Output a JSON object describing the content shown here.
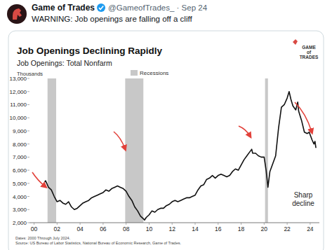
{
  "tweet": {
    "author": "Game of Trades",
    "meta": "@GameofTrades_ · Sep 24",
    "text": "WARNING: Job openings are falling off a cliff"
  },
  "chart_data": {
    "type": "line",
    "title": "Job Openings Declining Rapidly",
    "subtitle": "Job Openings: Total Nonfarm",
    "y_label": "Thousands",
    "legend_label": "Recessions",
    "logo": "GAME of TRADES",
    "annotation": "Sharp decline",
    "notes": [
      "Dates: 2000 Through July 2024.",
      "Source: US Bureau of Labor Statistics, National Bureau of Economic Research, Game of Trades."
    ],
    "color": "#111111",
    "recession_color": "#c8c8c8",
    "grid": false,
    "xlim": [
      1999.6,
      2024.8
    ],
    "ylim": [
      2000,
      13000
    ],
    "xticks": [
      {
        "value": 2000,
        "label": "00"
      },
      {
        "value": 2002,
        "label": "02"
      },
      {
        "value": 2004,
        "label": "04"
      },
      {
        "value": 2006,
        "label": "06"
      },
      {
        "value": 2008,
        "label": "08"
      },
      {
        "value": 2010,
        "label": "10"
      },
      {
        "value": 2012,
        "label": "12"
      },
      {
        "value": 2014,
        "label": "14"
      },
      {
        "value": 2016,
        "label": "16"
      },
      {
        "value": 2018,
        "label": "18"
      },
      {
        "value": 2020,
        "label": "20"
      },
      {
        "value": 2022,
        "label": "22"
      },
      {
        "value": 2024,
        "label": "24"
      }
    ],
    "yticks": [
      {
        "value": 2000,
        "label": "2,000"
      },
      {
        "value": 3000,
        "label": "3,000"
      },
      {
        "value": 4000,
        "label": "4,000"
      },
      {
        "value": 5000,
        "label": "5,000"
      },
      {
        "value": 6000,
        "label": "6,000"
      },
      {
        "value": 7000,
        "label": "7,000"
      },
      {
        "value": 8000,
        "label": "8,000"
      },
      {
        "value": 9000,
        "label": "9,000"
      },
      {
        "value": 10000,
        "label": "10,000"
      },
      {
        "value": 11000,
        "label": "11,000"
      },
      {
        "value": 12000,
        "label": "12,000"
      },
      {
        "value": 13000,
        "label": "13,000"
      }
    ],
    "recessions": [
      [
        2001.17,
        2001.92
      ],
      [
        2007.92,
        2009.5
      ],
      [
        2020.08,
        2020.33
      ]
    ],
    "x": [
      2000.92,
      2001.0,
      2001.25,
      2001.5,
      2001.75,
      2002.0,
      2002.25,
      2002.5,
      2002.75,
      2003.0,
      2003.25,
      2003.5,
      2003.75,
      2004.0,
      2004.25,
      2004.5,
      2004.75,
      2005.0,
      2005.25,
      2005.5,
      2005.75,
      2006.0,
      2006.25,
      2006.5,
      2006.75,
      2007.0,
      2007.25,
      2007.5,
      2007.75,
      2008.0,
      2008.25,
      2008.5,
      2008.75,
      2009.0,
      2009.25,
      2009.5,
      2009.6,
      2009.75,
      2010.0,
      2010.25,
      2010.5,
      2010.75,
      2011.0,
      2011.25,
      2011.5,
      2011.75,
      2012.0,
      2012.25,
      2012.5,
      2012.75,
      2013.0,
      2013.25,
      2013.5,
      2013.75,
      2014.0,
      2014.25,
      2014.5,
      2014.75,
      2015.0,
      2015.25,
      2015.5,
      2015.75,
      2016.0,
      2016.25,
      2016.5,
      2016.75,
      2017.0,
      2017.25,
      2017.5,
      2017.75,
      2018.0,
      2018.25,
      2018.5,
      2018.75,
      2018.92,
      2019.0,
      2019.25,
      2019.5,
      2019.75,
      2020.0,
      2020.17,
      2020.33,
      2020.5,
      2020.75,
      2021.0,
      2021.25,
      2021.5,
      2021.75,
      2022.0,
      2022.17,
      2022.33,
      2022.5,
      2022.75,
      2022.92,
      2023.0,
      2023.25,
      2023.5,
      2023.75,
      2023.92,
      2024.0,
      2024.17,
      2024.33,
      2024.42,
      2024.5
    ],
    "values": [
      5100,
      5200,
      4700,
      4500,
      4000,
      3600,
      3700,
      3500,
      3400,
      3600,
      3200,
      3000,
      3100,
      3300,
      3500,
      3600,
      3700,
      3900,
      4000,
      4100,
      4200,
      4300,
      4500,
      4400,
      4600,
      4700,
      4800,
      4700,
      4600,
      4400,
      4000,
      3700,
      3200,
      2900,
      2500,
      2300,
      2200,
      2400,
      2600,
      2900,
      2800,
      3000,
      3100,
      3100,
      3300,
      3400,
      3600,
      3700,
      3600,
      3700,
      3800,
      3900,
      3900,
      4000,
      4100,
      4500,
      4800,
      4900,
      5300,
      5400,
      5600,
      5400,
      5600,
      5700,
      5600,
      5500,
      5600,
      5900,
      6100,
      6000,
      6400,
      6800,
      7100,
      7400,
      7600,
      7300,
      7300,
      7100,
      7000,
      7000,
      6000,
      4700,
      5900,
      6500,
      7100,
      9200,
      10800,
      11000,
      11500,
      12000,
      11400,
      10900,
      10600,
      11200,
      10500,
      9800,
      8900,
      8800,
      8900,
      8700,
      8300,
      8000,
      8200,
      7700
    ]
  }
}
